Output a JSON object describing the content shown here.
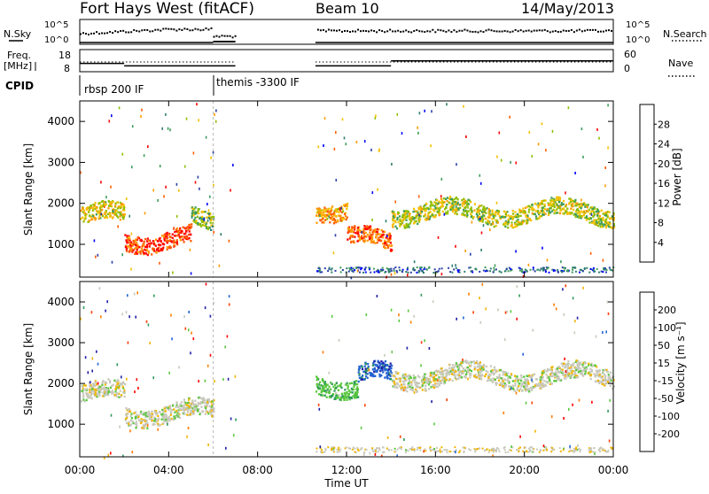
{
  "header": {
    "station": "Fort Hays West (fitACF)",
    "beam": "Beam 10",
    "date": "14/May/2013"
  },
  "noise_panel": {
    "left_label": "N.Sky",
    "right_label": "N.Search",
    "left_ticks": [
      "10^5",
      "10^0"
    ],
    "right_ticks": [
      "10^5",
      "10^0"
    ]
  },
  "freq_panel": {
    "left_label_1": "Freq.",
    "left_label_2": "[MHz]",
    "left_ticks": [
      "18",
      "8"
    ],
    "right_label": "Nave",
    "right_ticks": [
      "60",
      "0"
    ]
  },
  "cpid_panel": {
    "label": "CPID",
    "programs": [
      {
        "name": "rbsp 200 IF",
        "start_hour": 0
      },
      {
        "name": "themis -3300 IF",
        "start_hour": 6
      }
    ]
  },
  "power_panel": {
    "ylabel": "Slant Range [km]",
    "colorbar_label": "Power [dB]",
    "colorbar_ticks": [
      "28",
      "24",
      "20",
      "16",
      "12",
      "8",
      "4"
    ],
    "colors": [
      "#ff0000",
      "#ff5a00",
      "#ff9a00",
      "#f5c000",
      "#8fbf00",
      "#3c9c5a",
      "#2e7d6e",
      "#2840a8",
      "#0000ff"
    ]
  },
  "velocity_panel": {
    "ylabel": "Slant Range [km]",
    "colorbar_label": "Velocity [m s⁻¹]",
    "colorbar_ticks": [
      "200",
      "100",
      "50",
      "15",
      "-15",
      "-50",
      "-100",
      "-200"
    ],
    "colors": [
      "#1e1ea8",
      "#2464d2",
      "#2e9a5a",
      "#5ac83c",
      "#c8c8bc",
      "#f0b400",
      "#ff7a00",
      "#ff3c00",
      "#ff0000"
    ]
  },
  "xaxis": {
    "label": "Time UT",
    "ticks": [
      "00:00",
      "04:00",
      "08:00",
      "12:00",
      "16:00",
      "20:00",
      "00:00"
    ]
  },
  "chart_data": {
    "type": "heatmap",
    "title": "Fort Hays West (fitACF)",
    "x_unit": "hours UT",
    "xlim": [
      0,
      24
    ],
    "ylim": [
      200,
      4500
    ],
    "yticks": [
      1000,
      2000,
      3000,
      4000
    ],
    "xlabel": "Time UT",
    "ylabel": "Slant Range [km]",
    "data_gap_hours": [
      7,
      10.6
    ],
    "frequency_MHz": [
      {
        "start_hour": 0,
        "end_hour": 2,
        "value": 14
      },
      {
        "start_hour": 2,
        "end_hour": 7,
        "value": 12
      },
      {
        "start_hour": 10.6,
        "end_hour": 14,
        "value": 12
      },
      {
        "start_hour": 14,
        "end_hour": 24,
        "value": 16
      }
    ],
    "panels": [
      {
        "name": "Power",
        "unit": "dB",
        "scale": [
          0,
          30
        ],
        "echo_bands": [
          {
            "start_hour": 0,
            "end_hour": 2,
            "range_km": 1700,
            "value": 18
          },
          {
            "start_hour": 2,
            "end_hour": 5,
            "range_km": 1150,
            "value": 28
          },
          {
            "start_hour": 5,
            "end_hour": 6,
            "range_km": 1600,
            "value": 14
          },
          {
            "start_hour": 10.6,
            "end_hour": 12,
            "range_km": 1900,
            "value": 22
          },
          {
            "start_hour": 12,
            "end_hour": 14,
            "range_km": 1100,
            "value": 26
          },
          {
            "start_hour": 14,
            "end_hour": 24,
            "range_km": 1800,
            "value": 16
          }
        ]
      },
      {
        "name": "Velocity",
        "unit": "m s-1",
        "scale": [
          -200,
          200
        ],
        "echo_bands": [
          {
            "start_hour": 0,
            "end_hour": 2,
            "range_km": 1750,
            "value": 0
          },
          {
            "start_hour": 2,
            "end_hour": 6,
            "range_km": 1300,
            "value": 0
          },
          {
            "start_hour": 10.6,
            "end_hour": 12.5,
            "range_km": 2000,
            "value": 60
          },
          {
            "start_hour": 12.5,
            "end_hour": 14,
            "range_km": 2200,
            "value": 150
          },
          {
            "start_hour": 14,
            "end_hour": 24,
            "range_km": 2200,
            "value": 0
          }
        ]
      }
    ]
  }
}
